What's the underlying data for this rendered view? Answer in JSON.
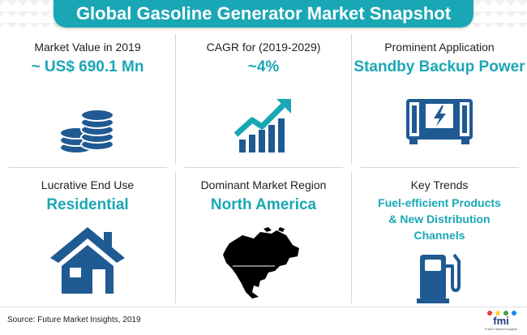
{
  "title": "Global Gasoline Generator Market Snapshot",
  "cells": [
    {
      "label": "Market Value in 2019",
      "value": "~ US$ 690.1 Mn",
      "icon": "coin-stack-icon"
    },
    {
      "label": "CAGR for (2019-2029)",
      "value": "~4%",
      "icon": "growth-chart-icon"
    },
    {
      "label": "Prominent Application",
      "value": "Standby Backup Power",
      "icon": "generator-icon"
    },
    {
      "label": "Lucrative End Use",
      "value": "Residential",
      "icon": "house-icon"
    },
    {
      "label": "Dominant Market Region",
      "value": "North America",
      "icon": "north-america-map-icon"
    },
    {
      "label": "Key Trends",
      "value_lines": [
        "Fuel-efficient Products",
        "& New Distribution",
        "Channels"
      ],
      "icon": "fuel-pump-icon"
    }
  ],
  "footer": {
    "source": "Source: Future Market Insights, 2019",
    "logo_text": "fmi",
    "logo_subtext": "Future Market Insights"
  },
  "colors": {
    "accent": "#1aa7b5",
    "icon_blue": "#1f5a93",
    "text": "#222222"
  }
}
